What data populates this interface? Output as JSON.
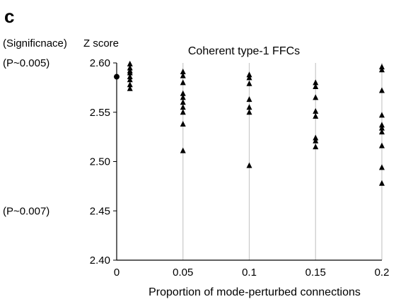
{
  "panel_label": "c",
  "significance_label": "(Significnace)",
  "p_labels": [
    {
      "text": "(P~0.005)",
      "y": 2.6
    },
    {
      "text": "(P~0.007)",
      "y": 2.45
    }
  ],
  "chart_data": {
    "type": "scatter",
    "title": "Coherent type-1 FFCs",
    "xlabel": "Proportion of mode-perturbed connections",
    "ylabel": "Z score",
    "xlim": [
      0,
      0.2
    ],
    "ylim": [
      2.4,
      2.6
    ],
    "x_ticks": [
      "0",
      "0.05",
      "0.1",
      "0.15",
      "0.2"
    ],
    "y_ticks": [
      "2.40",
      "2.45",
      "2.50",
      "2.55",
      "2.60"
    ],
    "grid": "vertical",
    "baseline_point": {
      "x": 0,
      "y": 2.586
    },
    "x_groups": [
      {
        "x": 0.01,
        "y": [
          2.599,
          2.595,
          2.592,
          2.59,
          2.586,
          2.583,
          2.578,
          2.574
        ]
      },
      {
        "x": 0.05,
        "y": [
          2.591,
          2.587,
          2.58,
          2.569,
          2.565,
          2.56,
          2.555,
          2.55,
          2.538,
          2.511
        ]
      },
      {
        "x": 0.1,
        "y": [
          2.588,
          2.585,
          2.579,
          2.563,
          2.555,
          2.55,
          2.496
        ]
      },
      {
        "x": 0.15,
        "y": [
          2.58,
          2.576,
          2.565,
          2.551,
          2.546,
          2.524,
          2.521,
          2.515
        ]
      },
      {
        "x": 0.2,
        "y": [
          2.596,
          2.593,
          2.572,
          2.547,
          2.537,
          2.534,
          2.53,
          2.516,
          2.494,
          2.478
        ]
      }
    ]
  }
}
